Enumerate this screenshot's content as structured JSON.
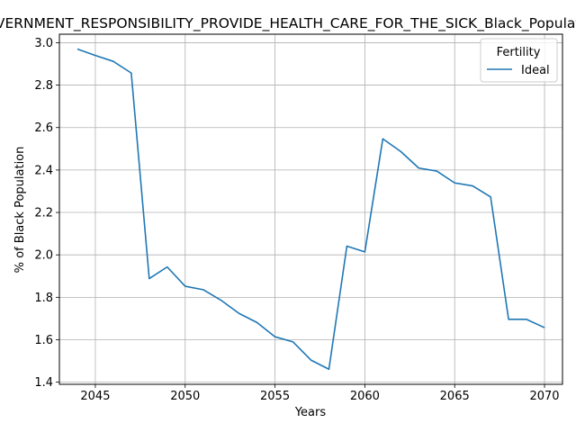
{
  "chart_data": {
    "type": "line",
    "title": "GOVERNMENT_RESPONSIBILITY_PROVIDE_HEALTH_CARE_FOR_THE_SICK_Black_Population",
    "xlabel": "Years",
    "ylabel": "% of Black Population",
    "xlim": [
      2043,
      2071
    ],
    "ylim": [
      1.39,
      3.04
    ],
    "xticks": [
      2045,
      2050,
      2055,
      2060,
      2065,
      2070
    ],
    "yticks": [
      1.4,
      1.6,
      1.8,
      2.0,
      2.2,
      2.4,
      2.6,
      2.8,
      3.0
    ],
    "grid": true,
    "legend": {
      "title": "Fertility",
      "placement": "top-right"
    },
    "colors": {
      "line": "#1f77b4",
      "grid": "#b0b0b0",
      "axis": "#000000"
    },
    "x": [
      2044,
      2045,
      2046,
      2047,
      2048,
      2049,
      2050,
      2051,
      2052,
      2053,
      2054,
      2055,
      2056,
      2057,
      2058,
      2059,
      2060,
      2061,
      2062,
      2063,
      2064,
      2065,
      2066,
      2067,
      2068,
      2069,
      2070
    ],
    "series": [
      {
        "name": "Ideal",
        "values": [
          2.97,
          2.94,
          2.912,
          2.857,
          1.888,
          1.943,
          1.852,
          1.836,
          1.786,
          1.724,
          1.681,
          1.614,
          1.59,
          1.504,
          1.461,
          2.041,
          2.014,
          2.547,
          2.487,
          2.409,
          2.395,
          2.339,
          2.325,
          2.273,
          1.696,
          1.696,
          1.657
        ]
      }
    ]
  }
}
